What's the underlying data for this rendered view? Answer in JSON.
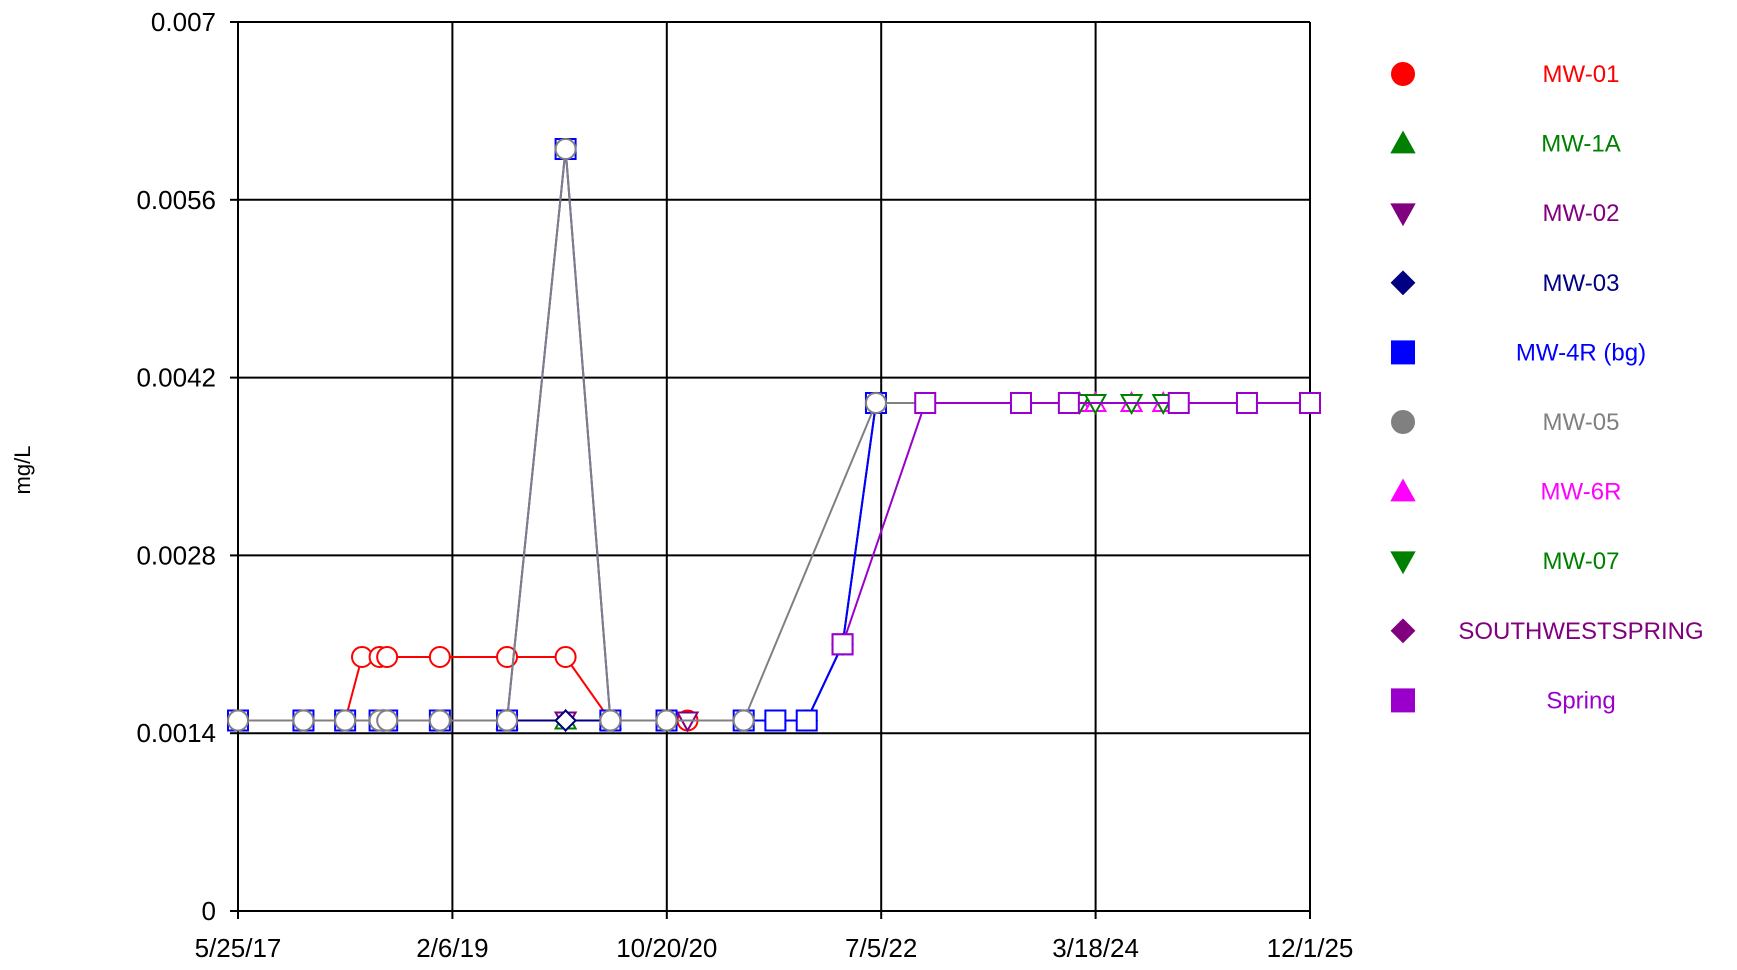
{
  "chart_data": {
    "type": "line",
    "title": "",
    "xlabel": "",
    "ylabel": "mg/L",
    "x_ticks": [
      "5/25/17",
      "2/6/19",
      "10/20/20",
      "7/5/22",
      "3/18/24",
      "12/1/25"
    ],
    "x_range": [
      "2017-05-25",
      "2025-12-01"
    ],
    "y_ticks": [
      "0",
      "0.0014",
      "0.0028",
      "0.0042",
      "0.0056",
      "0.007"
    ],
    "ylim": [
      0,
      0.007
    ],
    "grid": true,
    "legend_position": "right",
    "series": [
      {
        "name": "MW-01",
        "color": "#ff0000",
        "marker": "circle",
        "points": [
          [
            "2017-05-25",
            0.0015
          ],
          [
            "2017-12-01",
            0.0015
          ],
          [
            "2018-04-01",
            0.0015
          ],
          [
            "2018-05-20",
            0.002
          ],
          [
            "2018-07-10",
            0.002
          ],
          [
            "2018-08-01",
            0.002
          ],
          [
            "2019-01-01",
            0.002
          ],
          [
            "2019-07-15",
            0.002
          ],
          [
            "2020-01-01",
            0.002
          ],
          [
            "2020-05-10",
            0.0015
          ],
          [
            "2020-10-20",
            0.0015
          ],
          [
            "2020-12-20",
            0.0015
          ]
        ]
      },
      {
        "name": "MW-1A",
        "color": "#008000",
        "marker": "triangle-up",
        "points": [
          [
            "2019-07-15",
            0.0015
          ],
          [
            "2020-01-01",
            0.0015
          ],
          [
            "2020-05-10",
            0.0015
          ]
        ]
      },
      {
        "name": "MW-02",
        "color": "#800080",
        "marker": "triangle-down",
        "points": [
          [
            "2020-01-01",
            0.0015
          ],
          [
            "2020-12-20",
            0.0015
          ]
        ]
      },
      {
        "name": "MW-03",
        "color": "#000080",
        "marker": "diamond",
        "points": [
          [
            "2019-07-15",
            0.0015
          ],
          [
            "2020-01-01",
            0.0015
          ],
          [
            "2020-05-10",
            0.0015
          ],
          [
            "2020-10-20",
            0.0015
          ],
          [
            "2021-06-01",
            0.0015
          ],
          [
            "2021-12-01",
            0.0015
          ],
          [
            "2022-03-15",
            0.0021
          ],
          [
            "2022-06-20",
            0.004
          ]
        ]
      },
      {
        "name": "MW-4R (bg)",
        "color": "#0000ff",
        "marker": "square",
        "points": [
          [
            "2017-05-25",
            0.0015
          ],
          [
            "2017-12-01",
            0.0015
          ],
          [
            "2018-04-01",
            0.0015
          ],
          [
            "2018-07-10",
            0.0015
          ],
          [
            "2018-08-01",
            0.0015
          ],
          [
            "2019-01-01",
            0.0015
          ],
          [
            "2019-07-15",
            0.0015
          ],
          [
            "2020-01-01",
            0.006
          ],
          [
            "2020-05-10",
            0.0015
          ],
          [
            "2020-10-20",
            0.0015
          ],
          [
            "2021-06-01",
            0.0015
          ],
          [
            "2021-09-01",
            0.0015
          ],
          [
            "2021-12-01",
            0.0015
          ],
          [
            "2022-03-15",
            0.0021
          ],
          [
            "2022-06-20",
            0.004
          ],
          [
            "2023-08-15",
            0.004
          ]
        ]
      },
      {
        "name": "MW-05",
        "color": "#808080",
        "marker": "circle",
        "points": [
          [
            "2017-05-25",
            0.0015
          ],
          [
            "2017-12-01",
            0.0015
          ],
          [
            "2018-04-01",
            0.0015
          ],
          [
            "2018-07-10",
            0.0015
          ],
          [
            "2018-08-01",
            0.0015
          ],
          [
            "2019-01-01",
            0.0015
          ],
          [
            "2019-07-15",
            0.0015
          ],
          [
            "2020-01-01",
            0.006
          ],
          [
            "2020-05-10",
            0.0015
          ],
          [
            "2020-10-20",
            0.0015
          ],
          [
            "2021-06-01",
            0.0015
          ],
          [
            "2022-06-20",
            0.004
          ],
          [
            "2023-08-15",
            0.004
          ]
        ]
      },
      {
        "name": "MW-6R",
        "color": "#ff00ff",
        "marker": "triangle-up",
        "points": [
          [
            "2024-02-01",
            0.004
          ],
          [
            "2024-03-18",
            0.004
          ],
          [
            "2024-07-01",
            0.004
          ],
          [
            "2024-10-01",
            0.004
          ]
        ]
      },
      {
        "name": "MW-07",
        "color": "#008000",
        "marker": "triangle-down",
        "points": [
          [
            "2024-02-01",
            0.004
          ],
          [
            "2024-03-18",
            0.004
          ],
          [
            "2024-07-01",
            0.004
          ],
          [
            "2024-10-01",
            0.004
          ]
        ]
      },
      {
        "name": "SOUTHWESTSPRING",
        "color": "#800080",
        "marker": "diamond",
        "points": []
      },
      {
        "name": "Spring",
        "color": "#9900cc",
        "marker": "square",
        "points": [
          [
            "2022-03-15",
            0.0021
          ],
          [
            "2022-11-10",
            0.004
          ],
          [
            "2023-08-15",
            0.004
          ],
          [
            "2024-01-01",
            0.004
          ],
          [
            "2024-11-15",
            0.004
          ],
          [
            "2025-06-01",
            0.004
          ],
          [
            "2025-12-01",
            0.004
          ]
        ]
      }
    ]
  }
}
